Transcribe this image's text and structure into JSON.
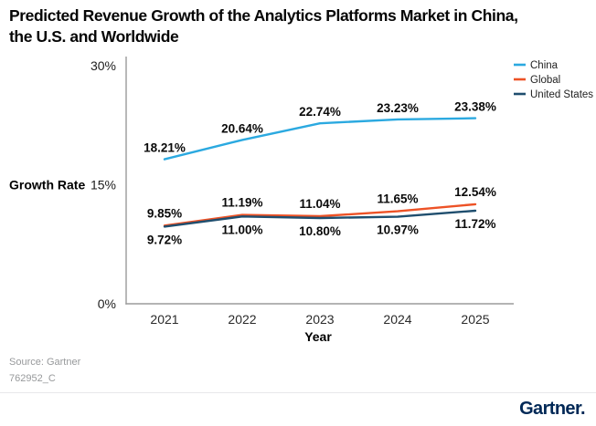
{
  "title": {
    "full": "Predicted Revenue Growth of the Analytics Platforms Market in China, the U.S. and Worldwide",
    "lines": [
      "Predicted Revenue Growth of the Analytics Platforms Market in China,",
      "the U.S. and Worldwide"
    ]
  },
  "chart_data": {
    "type": "line",
    "x": [
      "2021",
      "2022",
      "2023",
      "2024",
      "2025"
    ],
    "series": [
      {
        "name": "China",
        "color": "#2BA9E0",
        "values": [
          18.21,
          20.64,
          22.74,
          23.23,
          23.38
        ],
        "labels": [
          "18.21%",
          "20.64%",
          "22.74%",
          "23.23%",
          "23.38%"
        ],
        "label_position": "above"
      },
      {
        "name": "Global",
        "color": "#ED5226",
        "values": [
          9.85,
          11.19,
          11.04,
          11.65,
          12.54
        ],
        "labels": [
          "9.85%",
          "11.19%",
          "11.04%",
          "11.65%",
          "12.54%"
        ],
        "label_position": "above"
      },
      {
        "name": "United States",
        "color": "#1F4E6E",
        "values": [
          9.72,
          11.0,
          10.8,
          10.97,
          11.72
        ],
        "labels": [
          "9.72%",
          "11.00%",
          "10.80%",
          "10.97%",
          "11.72%"
        ],
        "label_position": "below"
      }
    ],
    "xlabel": "Year",
    "ylabel": "Growth Rate",
    "ylim": [
      0,
      30
    ],
    "yticks": [
      {
        "value": 0,
        "label": "0%"
      },
      {
        "value": 15,
        "label": "15%"
      },
      {
        "value": 30,
        "label": "30%"
      }
    ],
    "legend_position": "top-right",
    "grid": false
  },
  "footer": {
    "source_line1": "Source: Gartner",
    "source_line2": "762952_C",
    "logo_text": "Gartner."
  }
}
